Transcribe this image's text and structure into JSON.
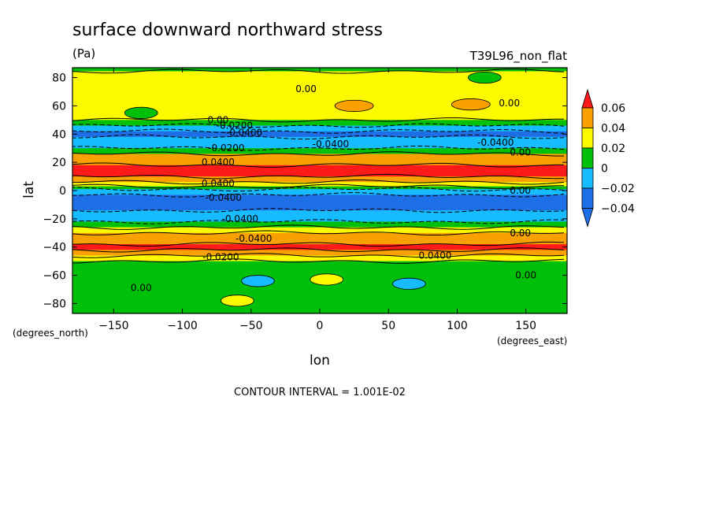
{
  "chart_data": {
    "type": "heatmap",
    "title": "surface downward northward stress",
    "units": "(Pa)",
    "run_label": "T39L96_non_flat",
    "xlabel": "lon",
    "ylabel": "lat",
    "x_units": "(degrees_east)",
    "y_units": "(degrees_north)",
    "xlim": [
      -180,
      180
    ],
    "ylim": [
      -87,
      87
    ],
    "x_ticks": [
      -150,
      -100,
      -50,
      0,
      50,
      100,
      150
    ],
    "x_tick_labels": [
      "−150",
      "−100",
      "−50",
      "0",
      "50",
      "100",
      "150"
    ],
    "y_ticks": [
      80,
      60,
      40,
      20,
      0,
      -20,
      -40,
      -60,
      -80
    ],
    "y_tick_labels": [
      "80",
      "60",
      "40",
      "20",
      "0",
      "−20",
      "−40",
      "−60",
      "−80"
    ],
    "colorbar": {
      "levels": [
        -0.04,
        -0.02,
        0,
        0.02,
        0.04,
        0.06
      ],
      "level_labels": [
        "−0.04",
        "−0.02",
        "0",
        "0.02",
        "0.04",
        "0.06"
      ],
      "colors": [
        "#1e6fe6",
        "#16bcff",
        "#00c00a",
        "#fdfa00",
        "#f9a100",
        "#ff1a1a"
      ],
      "extends": "both"
    },
    "zonal_profile": {
      "description_levels": "latitude band -> stress value (Pa), approximate zonal mean",
      "lat": [
        87,
        82,
        76,
        70,
        64,
        58,
        52,
        48,
        44,
        40,
        36,
        32,
        28,
        24,
        20,
        16,
        12,
        8,
        4,
        2,
        0,
        -2,
        -4,
        -8,
        -12,
        -16,
        -20,
        -24,
        -28,
        -32,
        -36,
        -40,
        -44,
        -48,
        -52,
        -56,
        -60,
        -64,
        -70,
        -76,
        -82,
        -87
      ],
      "value": [
        -0.01,
        0.005,
        0.01,
        0.008,
        0.012,
        0.01,
        0.004,
        -0.015,
        -0.032,
        -0.042,
        -0.038,
        -0.025,
        -0.005,
        0.025,
        0.038,
        0.042,
        0.04,
        0.025,
        0.005,
        -0.015,
        -0.03,
        -0.04,
        -0.045,
        -0.045,
        -0.043,
        -0.04,
        -0.032,
        -0.018,
        0.005,
        0.022,
        0.035,
        0.04,
        0.022,
        0.005,
        -0.006,
        -0.01,
        -0.006,
        -0.004,
        -0.008,
        -0.008,
        -0.006,
        -0.004
      ]
    },
    "contour_labels": [
      {
        "text": "0.00",
        "lon": -10,
        "lat": 72
      },
      {
        "text": "0.00",
        "lon": 138,
        "lat": 62
      },
      {
        "text": "0.00",
        "lon": -74,
        "lat": 50
      },
      {
        "text": "-0.0200",
        "lon": -62,
        "lat": 46
      },
      {
        "text": "-0.0400",
        "lon": -55,
        "lat": 41
      },
      {
        "text": "-0.0400",
        "lon": 8,
        "lat": 33
      },
      {
        "text": "-0.0400",
        "lon": 128,
        "lat": 34
      },
      {
        "text": "0.00",
        "lon": 146,
        "lat": 27
      },
      {
        "text": "-0.0200",
        "lon": -68,
        "lat": 30
      },
      {
        "text": "0.0400",
        "lon": -74,
        "lat": 20
      },
      {
        "text": "0.0400",
        "lon": -74,
        "lat": 5
      },
      {
        "text": "-0.0400",
        "lon": -70,
        "lat": -5
      },
      {
        "text": "0.00",
        "lon": 146,
        "lat": 0
      },
      {
        "text": "-0.0400",
        "lon": -58,
        "lat": -20
      },
      {
        "text": "0.00",
        "lon": 146,
        "lat": -30
      },
      {
        "text": "-0.0400",
        "lon": -48,
        "lat": -34
      },
      {
        "text": "0.0400",
        "lon": 84,
        "lat": -46
      },
      {
        "text": "-0.0200",
        "lon": -72,
        "lat": -47
      },
      {
        "text": "0.00",
        "lon": 150,
        "lat": -60
      },
      {
        "text": "0.00",
        "lon": -130,
        "lat": -69
      }
    ],
    "features": [
      {
        "kind": "yellow-patch",
        "lon": 25,
        "lat": 60,
        "value": 0.025
      },
      {
        "kind": "yellow-patch",
        "lon": 110,
        "lat": 61,
        "value": 0.022
      },
      {
        "kind": "blue-patch",
        "lon": -45,
        "lat": -64,
        "value": -0.025
      },
      {
        "kind": "blue-patch",
        "lon": 65,
        "lat": -66,
        "value": -0.022
      },
      {
        "kind": "green-patch",
        "lon": 5,
        "lat": -63,
        "value": 0.004
      },
      {
        "kind": "green-patch",
        "lon": -60,
        "lat": -78,
        "value": 0.004
      },
      {
        "kind": "cyan-patch",
        "lon": -130,
        "lat": 55,
        "value": -0.004
      },
      {
        "kind": "cyan-patch",
        "lon": 120,
        "lat": 80,
        "value": -0.008
      }
    ]
  },
  "footer": {
    "contour_interval": "CONTOUR INTERVAL = 1.001E-02"
  }
}
